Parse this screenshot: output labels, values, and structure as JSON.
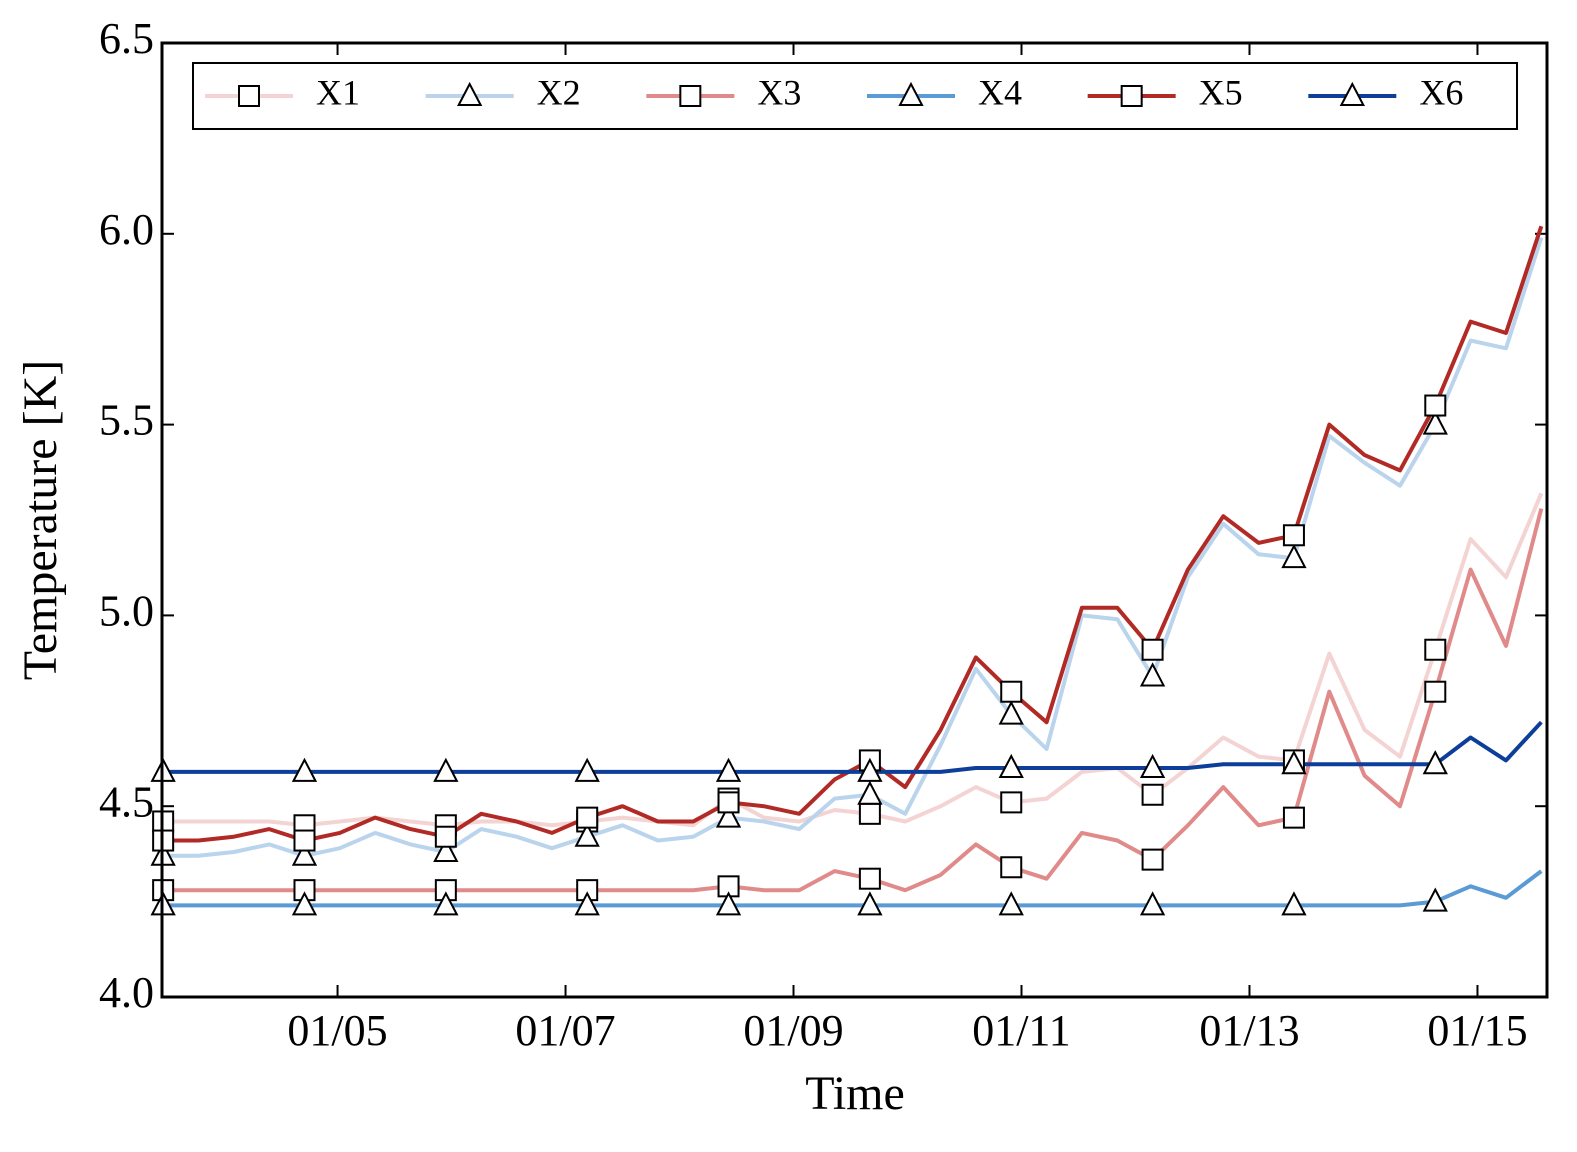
{
  "chart_data": {
    "type": "line",
    "xlabel": "Time",
    "ylabel": "Temperature [K]",
    "x": [
      3.47,
      3.78,
      4.09,
      4.4,
      4.71,
      5.02,
      5.33,
      5.64,
      5.95,
      6.26,
      6.57,
      6.88,
      7.19,
      7.5,
      7.81,
      8.12,
      8.43,
      8.74,
      9.05,
      9.36,
      9.67,
      9.98,
      10.29,
      10.6,
      10.91,
      11.22,
      11.53,
      11.84,
      12.15,
      12.46,
      12.77,
      13.08,
      13.39,
      13.7,
      14.01,
      14.32,
      14.63,
      14.94,
      15.25,
      15.56
    ],
    "xlim": [
      3.46,
      15.61
    ],
    "xticks": [
      {
        "value": 5,
        "label": "01/05"
      },
      {
        "value": 7,
        "label": "01/07"
      },
      {
        "value": 9,
        "label": "01/09"
      },
      {
        "value": 11,
        "label": "01/11"
      },
      {
        "value": 13,
        "label": "01/13"
      },
      {
        "value": 15,
        "label": "01/15"
      }
    ],
    "ylim": [
      4.0,
      6.5
    ],
    "yticks": [
      {
        "value": 4,
        "label": "4.0"
      },
      4.5,
      {
        "value": 5,
        "label": "5.0"
      },
      5.5,
      {
        "value": 6,
        "label": "6.0"
      },
      6.5
    ],
    "grid": false,
    "legend": "top",
    "series": [
      {
        "name": "X1",
        "color": "#f4d3d3",
        "marker": "square",
        "values": [
          4.46,
          4.46,
          4.46,
          4.46,
          4.45,
          4.46,
          4.47,
          4.46,
          4.45,
          4.46,
          4.46,
          4.45,
          4.46,
          4.47,
          4.46,
          4.45,
          4.52,
          4.47,
          4.46,
          4.49,
          4.48,
          4.46,
          4.5,
          4.55,
          4.51,
          4.52,
          4.59,
          4.6,
          4.53,
          4.6,
          4.68,
          4.63,
          4.62,
          4.9,
          4.7,
          4.63,
          4.91,
          5.2,
          5.1,
          5.32
        ]
      },
      {
        "name": "X2",
        "color": "#b9d4ec",
        "marker": "triangle",
        "values": [
          4.37,
          4.37,
          4.38,
          4.4,
          4.37,
          4.39,
          4.43,
          4.4,
          4.38,
          4.44,
          4.42,
          4.39,
          4.42,
          4.45,
          4.41,
          4.42,
          4.47,
          4.46,
          4.44,
          4.52,
          4.53,
          4.48,
          4.66,
          4.86,
          4.74,
          4.65,
          5.0,
          4.99,
          4.84,
          5.1,
          5.24,
          5.16,
          5.15,
          5.47,
          5.4,
          5.34,
          5.5,
          5.72,
          5.7,
          5.99
        ]
      },
      {
        "name": "X3",
        "color": "#e08a8a",
        "marker": "square",
        "values": [
          4.28,
          4.28,
          4.28,
          4.28,
          4.28,
          4.28,
          4.28,
          4.28,
          4.28,
          4.28,
          4.28,
          4.28,
          4.28,
          4.28,
          4.28,
          4.28,
          4.29,
          4.28,
          4.28,
          4.33,
          4.31,
          4.28,
          4.32,
          4.4,
          4.34,
          4.31,
          4.43,
          4.41,
          4.36,
          4.45,
          4.55,
          4.45,
          4.47,
          4.8,
          4.58,
          4.5,
          4.8,
          5.12,
          4.92,
          5.28
        ]
      },
      {
        "name": "X4",
        "color": "#5b9bd5",
        "marker": "triangle",
        "values": [
          4.24,
          4.24,
          4.24,
          4.24,
          4.24,
          4.24,
          4.24,
          4.24,
          4.24,
          4.24,
          4.24,
          4.24,
          4.24,
          4.24,
          4.24,
          4.24,
          4.24,
          4.24,
          4.24,
          4.24,
          4.24,
          4.24,
          4.24,
          4.24,
          4.24,
          4.24,
          4.24,
          4.24,
          4.24,
          4.24,
          4.24,
          4.24,
          4.24,
          4.24,
          4.24,
          4.24,
          4.25,
          4.29,
          4.26,
          4.33
        ]
      },
      {
        "name": "X5",
        "color": "#b22a25",
        "marker": "square",
        "values": [
          4.41,
          4.41,
          4.42,
          4.44,
          4.41,
          4.43,
          4.47,
          4.44,
          4.42,
          4.48,
          4.46,
          4.43,
          4.47,
          4.5,
          4.46,
          4.46,
          4.51,
          4.5,
          4.48,
          4.57,
          4.62,
          4.55,
          4.7,
          4.89,
          4.8,
          4.72,
          5.02,
          5.02,
          4.91,
          5.12,
          5.26,
          5.19,
          5.21,
          5.5,
          5.42,
          5.38,
          5.55,
          5.77,
          5.74,
          6.02
        ]
      },
      {
        "name": "X6",
        "color": "#0d3f9a",
        "marker": "triangle",
        "values": [
          4.59,
          4.59,
          4.59,
          4.59,
          4.59,
          4.59,
          4.59,
          4.59,
          4.59,
          4.59,
          4.59,
          4.59,
          4.59,
          4.59,
          4.59,
          4.59,
          4.59,
          4.59,
          4.59,
          4.59,
          4.59,
          4.59,
          4.59,
          4.6,
          4.6,
          4.6,
          4.6,
          4.6,
          4.6,
          4.6,
          4.61,
          4.61,
          4.61,
          4.61,
          4.61,
          4.61,
          4.61,
          4.68,
          4.62,
          4.72
        ]
      }
    ]
  }
}
